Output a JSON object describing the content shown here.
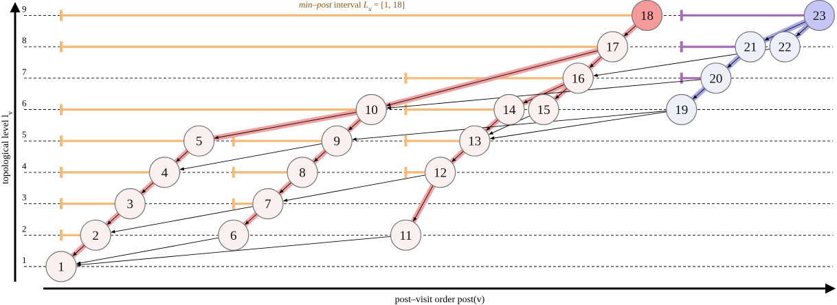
{
  "title": {
    "prefix_italic": "min–post",
    "middle": " interval ",
    "var_main": "L",
    "var_sub": "u",
    "suffix": " = [1, 18]"
  },
  "axes": {
    "x_label": "post–visit order post(v)",
    "y_label": "topological level l",
    "y_label_sub": "v"
  },
  "levels": [
    "1",
    "2",
    "3",
    "4",
    "5",
    "6",
    "7",
    "8",
    "9"
  ],
  "colors": {
    "orange": "#f7b977",
    "purple": "#a56bb4",
    "red_path": "#f3a0a0",
    "blue_path": "#a9a9ea",
    "node_default": "#fbf0f0",
    "node_red": "#f59a9a",
    "node_blue": "#c6c6f6",
    "node_lightblue": "#efeffc"
  },
  "nodes": [
    {
      "id": "1",
      "label": "1",
      "post": 1,
      "level": 1,
      "style": "default"
    },
    {
      "id": "2",
      "label": "2",
      "post": 2,
      "level": 2,
      "style": "default"
    },
    {
      "id": "3",
      "label": "3",
      "post": 3,
      "level": 3,
      "style": "default"
    },
    {
      "id": "4",
      "label": "4",
      "post": 4,
      "level": 4,
      "style": "default"
    },
    {
      "id": "5",
      "label": "5",
      "post": 5,
      "level": 5,
      "style": "default"
    },
    {
      "id": "6",
      "label": "6",
      "post": 6,
      "level": 2,
      "style": "default"
    },
    {
      "id": "7",
      "label": "7",
      "post": 7,
      "level": 3,
      "style": "default"
    },
    {
      "id": "8",
      "label": "8",
      "post": 8,
      "level": 4,
      "style": "default"
    },
    {
      "id": "9",
      "label": "9",
      "post": 9,
      "level": 5,
      "style": "default"
    },
    {
      "id": "10",
      "label": "10",
      "post": 10,
      "level": 6,
      "style": "default"
    },
    {
      "id": "11",
      "label": "11",
      "post": 11,
      "level": 2,
      "style": "default"
    },
    {
      "id": "12",
      "label": "12",
      "post": 12,
      "level": 4,
      "style": "default"
    },
    {
      "id": "13",
      "label": "13",
      "post": 13,
      "level": 5,
      "style": "default"
    },
    {
      "id": "14",
      "label": "14",
      "post": 14,
      "level": 6,
      "style": "default"
    },
    {
      "id": "15",
      "label": "15",
      "post": 15,
      "level": 6,
      "style": "default"
    },
    {
      "id": "16",
      "label": "16",
      "post": 16,
      "level": 7,
      "style": "default"
    },
    {
      "id": "17",
      "label": "17",
      "post": 17,
      "level": 8,
      "style": "default"
    },
    {
      "id": "18",
      "label": "18",
      "post": 18,
      "level": 9,
      "style": "red"
    },
    {
      "id": "19",
      "label": "19",
      "post": 19,
      "level": 6,
      "style": "lightblue"
    },
    {
      "id": "20",
      "label": "20",
      "post": 20,
      "level": 7,
      "style": "lightblue"
    },
    {
      "id": "21",
      "label": "21",
      "post": 21,
      "level": 8,
      "style": "lightblue"
    },
    {
      "id": "22",
      "label": "22",
      "post": 22,
      "level": 8,
      "style": "lightblue"
    },
    {
      "id": "23",
      "label": "23",
      "post": 23,
      "level": 9,
      "style": "blue"
    }
  ],
  "edges": [
    {
      "from": "18",
      "to": "17",
      "hl": "red"
    },
    {
      "from": "17",
      "to": "10",
      "hl": "red"
    },
    {
      "from": "17",
      "to": "16",
      "hl": "red"
    },
    {
      "from": "10",
      "to": "5",
      "hl": "red"
    },
    {
      "from": "10",
      "to": "9",
      "hl": "red"
    },
    {
      "from": "5",
      "to": "4",
      "hl": "red"
    },
    {
      "from": "4",
      "to": "3",
      "hl": "red"
    },
    {
      "from": "3",
      "to": "2",
      "hl": "red"
    },
    {
      "from": "2",
      "to": "1",
      "hl": "red"
    },
    {
      "from": "9",
      "to": "8",
      "hl": "red"
    },
    {
      "from": "8",
      "to": "7",
      "hl": "red"
    },
    {
      "from": "7",
      "to": "6",
      "hl": "red"
    },
    {
      "from": "16",
      "to": "15",
      "hl": "red"
    },
    {
      "from": "16",
      "to": "14",
      "hl": "red"
    },
    {
      "from": "14",
      "to": "13",
      "hl": "red"
    },
    {
      "from": "13",
      "to": "12",
      "hl": "red"
    },
    {
      "from": "12",
      "to": "11",
      "hl": "red"
    },
    {
      "from": "23",
      "to": "21",
      "hl": "blue"
    },
    {
      "from": "23",
      "to": "22",
      "hl": "blue"
    },
    {
      "from": "21",
      "to": "20",
      "hl": "blue"
    },
    {
      "from": "20",
      "to": "19",
      "hl": "blue"
    },
    {
      "from": "9",
      "to": "4",
      "hl": "none"
    },
    {
      "from": "7",
      "to": "2",
      "hl": "none"
    },
    {
      "from": "6",
      "to": "1",
      "hl": "none"
    },
    {
      "from": "11",
      "to": "1",
      "hl": "none"
    },
    {
      "from": "12",
      "to": "7",
      "hl": "none"
    },
    {
      "from": "15",
      "to": "13",
      "hl": "none"
    },
    {
      "from": "19",
      "to": "9",
      "hl": "none"
    },
    {
      "from": "19",
      "to": "13",
      "hl": "none"
    },
    {
      "from": "20",
      "to": "10",
      "hl": "none"
    },
    {
      "from": "22",
      "to": "16",
      "hl": "none"
    }
  ],
  "intervals": [
    {
      "node": "18",
      "min_post": 1,
      "color": "orange"
    },
    {
      "node": "17",
      "min_post": 1,
      "color": "orange"
    },
    {
      "node": "16",
      "min_post": 11,
      "color": "orange"
    },
    {
      "node": "14",
      "min_post": 11,
      "color": "orange"
    },
    {
      "node": "10",
      "min_post": 1,
      "color": "orange"
    },
    {
      "node": "5",
      "min_post": 1,
      "color": "orange"
    },
    {
      "node": "9",
      "min_post": 6,
      "color": "orange"
    },
    {
      "node": "13",
      "min_post": 11,
      "color": "orange"
    },
    {
      "node": "4",
      "min_post": 1,
      "color": "orange"
    },
    {
      "node": "8",
      "min_post": 6,
      "color": "orange"
    },
    {
      "node": "12",
      "min_post": 11,
      "color": "orange"
    },
    {
      "node": "3",
      "min_post": 1,
      "color": "orange"
    },
    {
      "node": "7",
      "min_post": 6,
      "color": "orange"
    },
    {
      "node": "2",
      "min_post": 1,
      "color": "orange"
    },
    {
      "node": "23",
      "min_post": 19,
      "color": "purple"
    },
    {
      "node": "21",
      "min_post": 19,
      "color": "purple"
    },
    {
      "node": "20",
      "min_post": 19,
      "color": "purple"
    }
  ]
}
